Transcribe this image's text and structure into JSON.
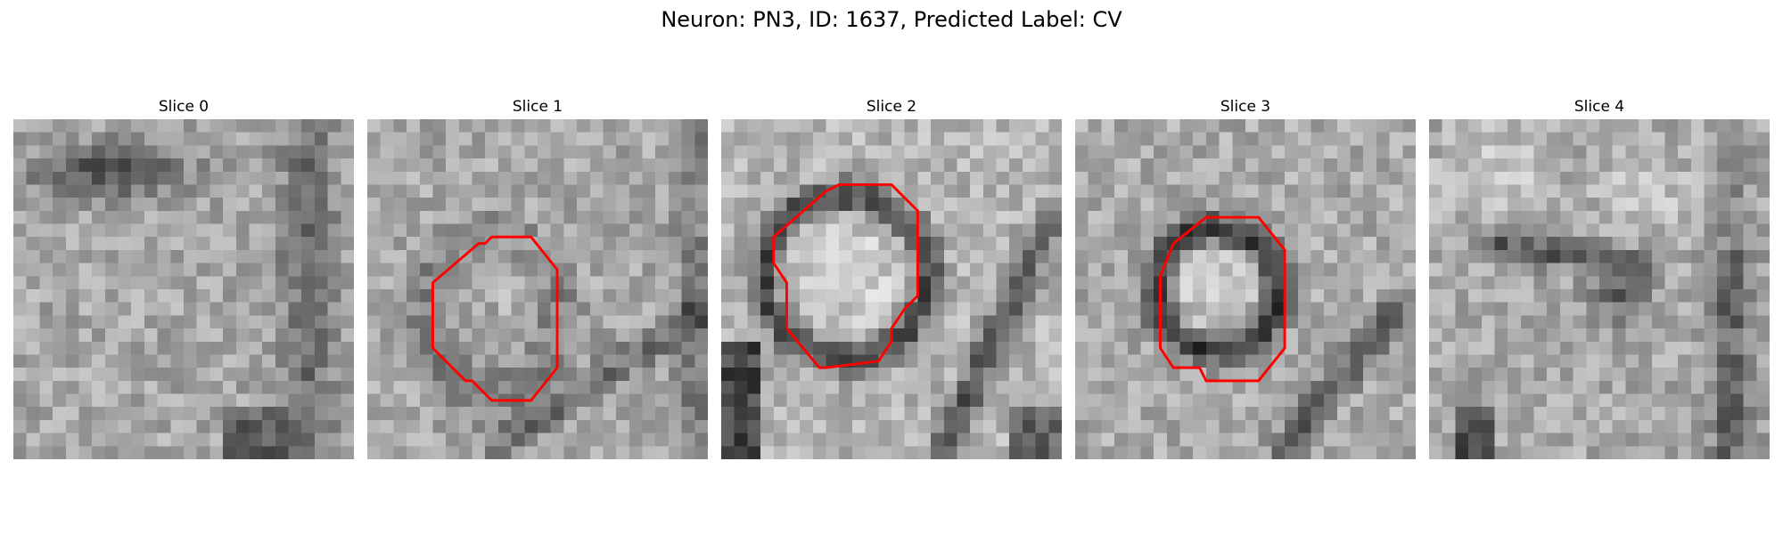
{
  "figure": {
    "title": "Neuron: PN3, ID: 1637, Predicted Label: CV"
  },
  "panels": [
    {
      "label": "Slice 0",
      "has_contour": false
    },
    {
      "label": "Slice 1",
      "has_contour": true
    },
    {
      "label": "Slice 2",
      "has_contour": true
    },
    {
      "label": "Slice 3",
      "has_contour": true
    },
    {
      "label": "Slice 4",
      "has_contour": false
    }
  ],
  "colors": {
    "contour": "#ff0000",
    "background": "#ffffff"
  }
}
